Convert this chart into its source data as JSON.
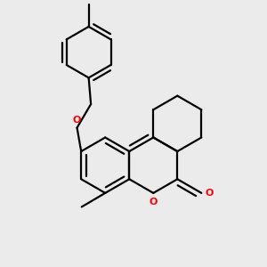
{
  "background_color": "#ebebeb",
  "bond_color": "#000000",
  "oxygen_color": "#ff0000",
  "lw": 1.6,
  "dbo": 0.018,
  "figsize": [
    3.0,
    3.0
  ],
  "dpi": 100,
  "xlim": [
    0.0,
    1.0
  ],
  "ylim": [
    0.0,
    1.0
  ]
}
